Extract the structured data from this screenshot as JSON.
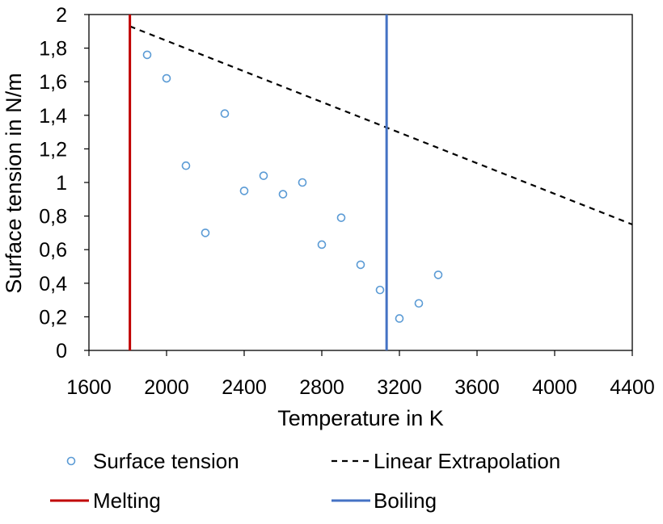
{
  "chart_data": {
    "type": "scatter",
    "title": "",
    "xlabel": "Temperature in K",
    "ylabel": "Surface tension in N/m",
    "xlim": [
      1600,
      4400
    ],
    "ylim": [
      0,
      2
    ],
    "x_ticks": [
      1600,
      2000,
      2400,
      2800,
      3200,
      3600,
      4000,
      4400
    ],
    "x_tick_labels": [
      "1600",
      "2000",
      "2400",
      "2800",
      "3200",
      "3600",
      "4000",
      "4400"
    ],
    "y_ticks": [
      0,
      0.2,
      0.4,
      0.6,
      0.8,
      1,
      1.2,
      1.4,
      1.6,
      1.8,
      2
    ],
    "y_tick_labels": [
      "0",
      "0,2",
      "0,4",
      "0,6",
      "0,8",
      "1",
      "1,2",
      "1,4",
      "1,6",
      "1,8",
      "2"
    ],
    "grid": false,
    "legend_position": "bottom",
    "series": [
      {
        "name": "Surface tension",
        "kind": "scatter",
        "color": "#5b9bd5",
        "points": [
          {
            "x": 1900,
            "y": 1.76
          },
          {
            "x": 2000,
            "y": 1.62
          },
          {
            "x": 2100,
            "y": 1.1
          },
          {
            "x": 2200,
            "y": 0.7
          },
          {
            "x": 2300,
            "y": 1.41
          },
          {
            "x": 2400,
            "y": 0.95
          },
          {
            "x": 2500,
            "y": 1.04
          },
          {
            "x": 2600,
            "y": 0.93
          },
          {
            "x": 2700,
            "y": 1.0
          },
          {
            "x": 2800,
            "y": 0.63
          },
          {
            "x": 2900,
            "y": 0.79
          },
          {
            "x": 3000,
            "y": 0.51
          },
          {
            "x": 3100,
            "y": 0.36
          },
          {
            "x": 3200,
            "y": 0.19
          },
          {
            "x": 3300,
            "y": 0.28
          },
          {
            "x": 3400,
            "y": 0.45
          }
        ]
      },
      {
        "name": "Linear Extrapolation",
        "kind": "dashed-line",
        "color": "#000000",
        "points": [
          {
            "x": 1811,
            "y": 1.93
          },
          {
            "x": 4400,
            "y": 0.75
          }
        ]
      },
      {
        "name": "Melting",
        "kind": "vertical-line",
        "color": "#c00000",
        "x": 1811
      },
      {
        "name": "Boiling",
        "kind": "vertical-line",
        "color": "#4472c4",
        "x": 3134
      }
    ]
  }
}
